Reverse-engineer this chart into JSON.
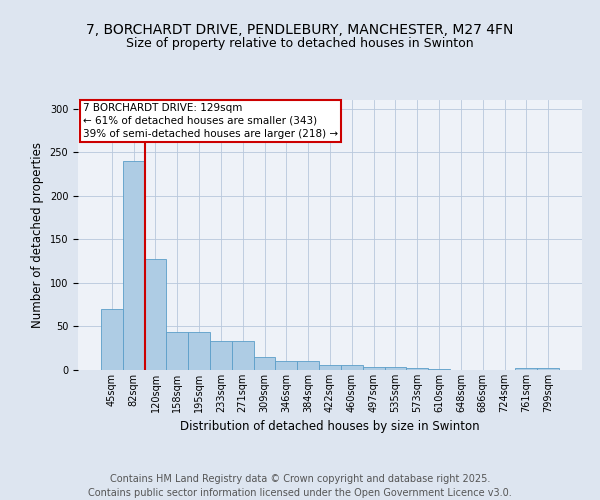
{
  "title_line1": "7, BORCHARDT DRIVE, PENDLEBURY, MANCHESTER, M27 4FN",
  "title_line2": "Size of property relative to detached houses in Swinton",
  "xlabel": "Distribution of detached houses by size in Swinton",
  "ylabel": "Number of detached properties",
  "categories": [
    "45sqm",
    "82sqm",
    "120sqm",
    "158sqm",
    "195sqm",
    "233sqm",
    "271sqm",
    "309sqm",
    "346sqm",
    "384sqm",
    "422sqm",
    "460sqm",
    "497sqm",
    "535sqm",
    "573sqm",
    "610sqm",
    "648sqm",
    "686sqm",
    "724sqm",
    "761sqm",
    "799sqm"
  ],
  "values": [
    70,
    240,
    127,
    44,
    44,
    33,
    33,
    15,
    10,
    10,
    6,
    6,
    4,
    3,
    2,
    1,
    0,
    0,
    0,
    2,
    2
  ],
  "bar_color": "#aecce4",
  "bar_edge_color": "#5b9ec9",
  "red_line_x": 1.5,
  "red_line_color": "#cc0000",
  "ylim": [
    0,
    310
  ],
  "annotation_line1": "7 BORCHARDT DRIVE: 129sqm",
  "annotation_line2": "← 61% of detached houses are smaller (343)",
  "annotation_line3": "39% of semi-detached houses are larger (218) →",
  "annotation_box_color": "#cc0000",
  "annotation_text_color": "#000000",
  "background_color": "#dde5f0",
  "plot_background_color": "#eef2f8",
  "footer_text": "Contains HM Land Registry data © Crown copyright and database right 2025.\nContains public sector information licensed under the Open Government Licence v3.0.",
  "title_fontsize": 10,
  "subtitle_fontsize": 9,
  "tick_fontsize": 7,
  "axis_label_fontsize": 8.5,
  "footer_fontsize": 7,
  "annotation_fontsize": 7.5
}
